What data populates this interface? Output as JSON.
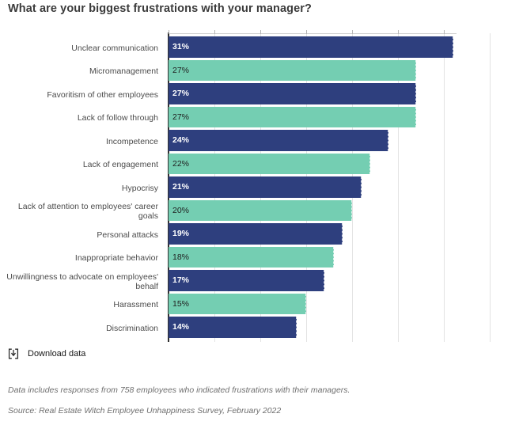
{
  "title": "What are your biggest frustrations with your manager?",
  "chart_data": {
    "type": "bar",
    "orientation": "horizontal",
    "title": "What are your biggest frustrations with your manager?",
    "xlabel": "",
    "ylabel": "",
    "categories": [
      "Unclear communication",
      "Micromanagement",
      "Favoritism of other employees",
      "Lack of follow through",
      "Incompetence",
      "Lack of engagement",
      "Hypocrisy",
      "Lack of attention to employees' career goals",
      "Personal attacks",
      "Inappropriate behavior",
      "Unwillingness to advocate on employees' behalf",
      "Harassment",
      "Discrimination"
    ],
    "values": [
      31,
      27,
      27,
      27,
      24,
      22,
      21,
      20,
      19,
      18,
      17,
      15,
      14
    ],
    "value_labels": [
      "31%",
      "27%",
      "27%",
      "27%",
      "24%",
      "22%",
      "21%",
      "20%",
      "19%",
      "18%",
      "17%",
      "15%",
      "14%"
    ],
    "unit": "%",
    "xlim": [
      0,
      35
    ],
    "gridline_step": 5,
    "grid": true,
    "legend": "none",
    "bar_colors_alternate": [
      "#2e3f7e",
      "#74ceb2"
    ]
  },
  "colors": {
    "navy": "#2e3f7e",
    "teal": "#74ceb2",
    "axis": "#323232",
    "gridline": "#e3e3e3",
    "title_text": "#3b3b3b",
    "label_text": "#4b4b4b",
    "value_on_dark": "#ffffff",
    "value_on_light": "#1f1f1f",
    "footnote_text": "#6f6f6f"
  },
  "footer": {
    "download_label": "Download data",
    "note": "Data includes responses from 758 employees who indicated frustrations with their managers.",
    "source": "Source: Real Estate Witch Employee Unhappiness Survey, February 2022"
  }
}
